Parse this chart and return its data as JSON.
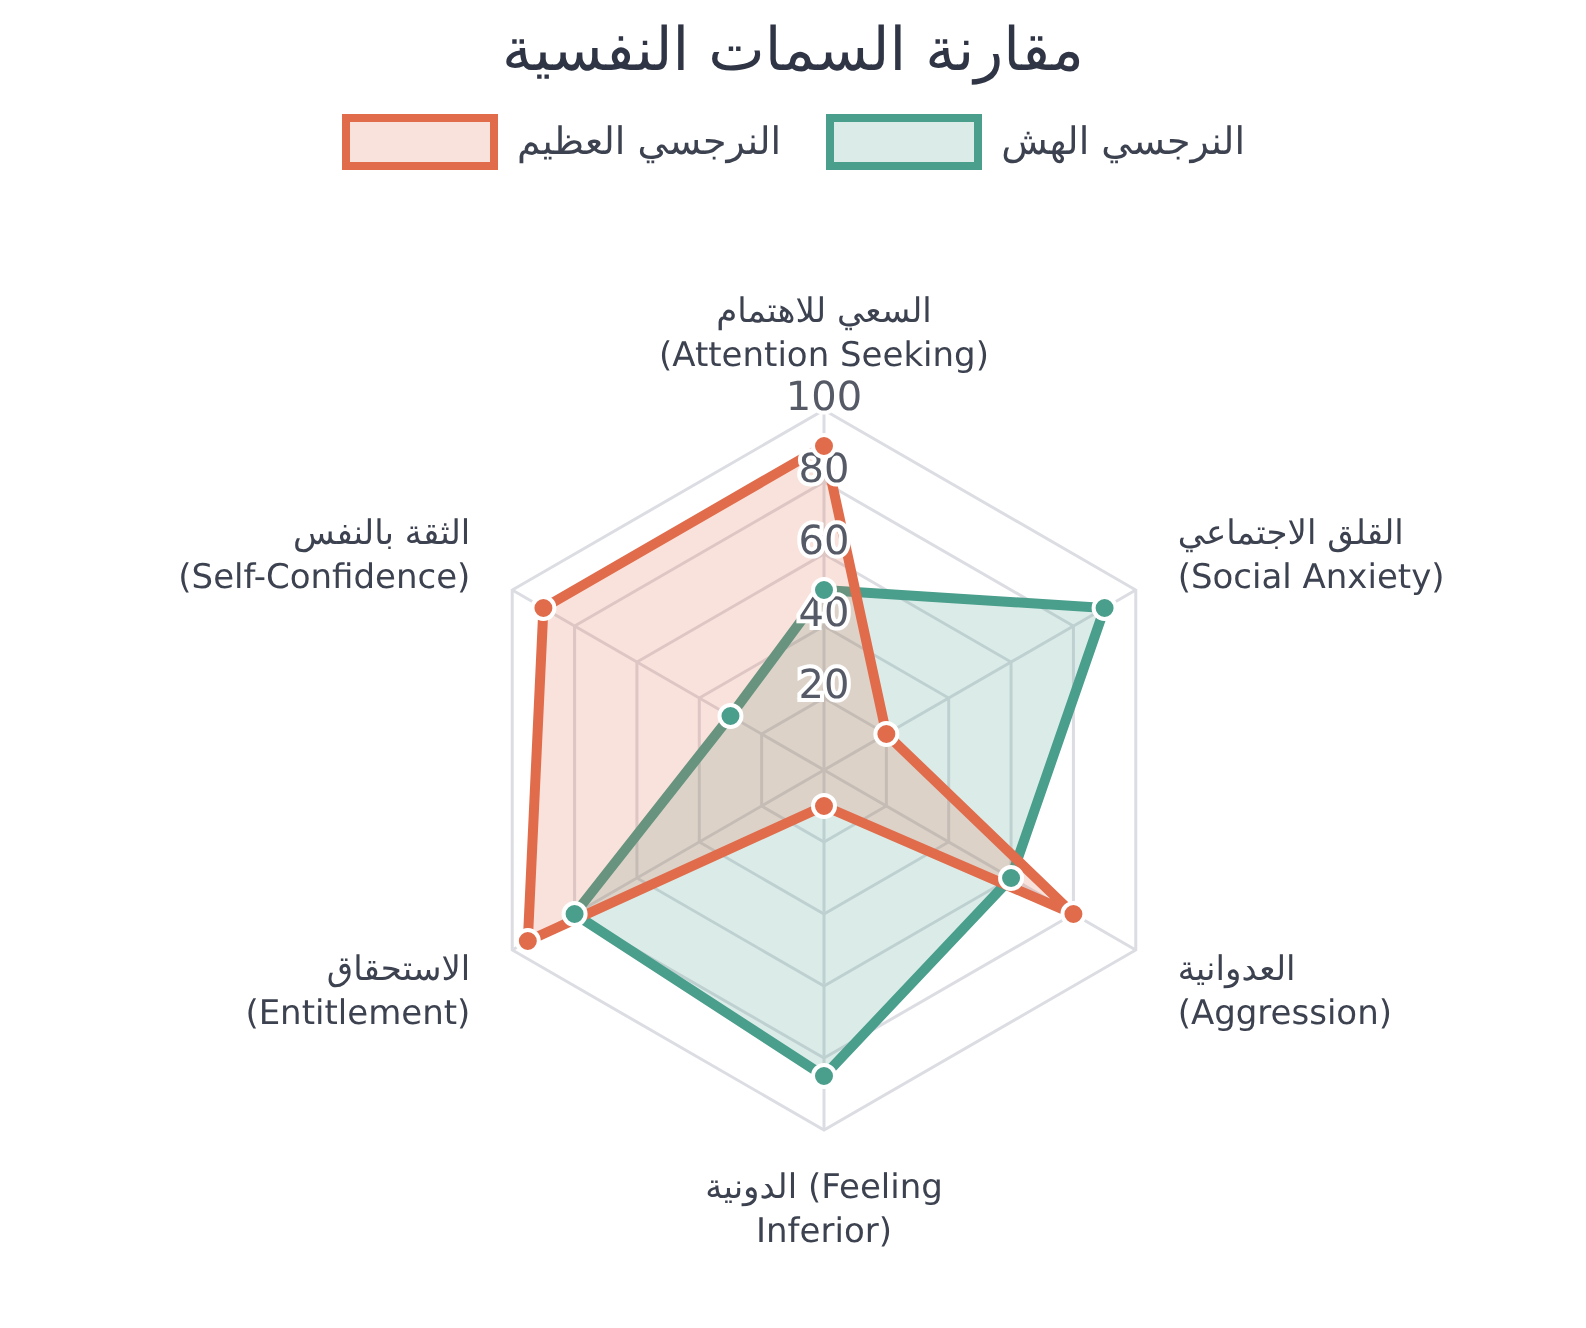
{
  "chart_data": {
    "type": "radar",
    "title": "مقارنة السمات النفسية",
    "categories": [
      "السعي للاهتمام\n(Attention Seeking)",
      "القلق الاجتماعي\n(Social Anxiety)",
      "العدوانية\n(Aggression)",
      "الدونية (Feeling\nInferior)",
      "الاستحقاق\n(Entitlement)",
      "الثقة بالنفس\n(Self-Confidence)"
    ],
    "series": [
      {
        "name": "النرجسي الهش",
        "color": "#4a9e8c",
        "values": [
          50,
          90,
          60,
          85,
          80,
          30
        ]
      },
      {
        "name": "النرجسي العظيم",
        "color": "#e06c4c",
        "values": [
          90,
          20,
          80,
          10,
          95,
          90
        ]
      }
    ],
    "ylim": [
      0,
      100
    ],
    "yticks": [
      20,
      40,
      60,
      80,
      100
    ],
    "grid": true,
    "legend": "top",
    "marker": "circle"
  }
}
